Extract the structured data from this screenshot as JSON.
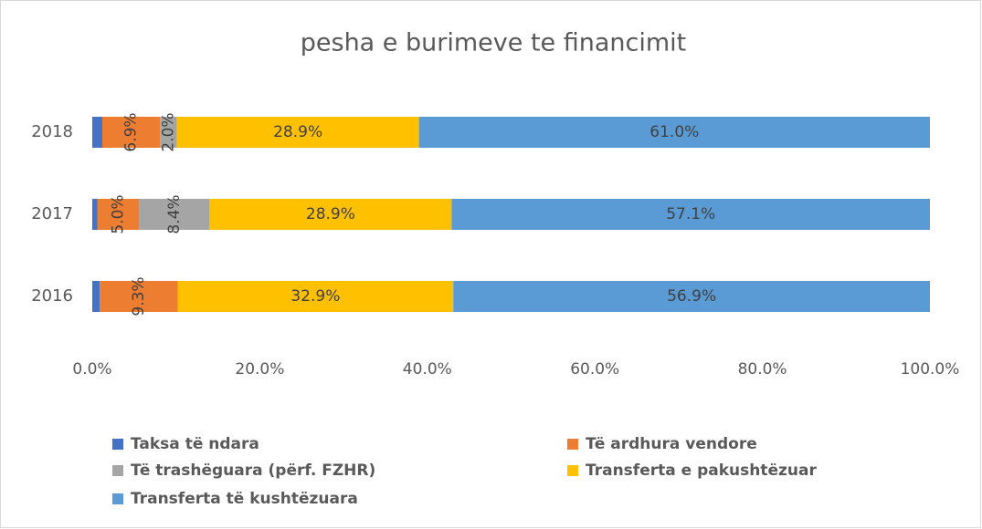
{
  "chart_data": {
    "type": "stacked-bar-horizontal",
    "title": "pesha e burimeve te financimit",
    "categories": [
      "2018",
      "2017",
      "2016"
    ],
    "series": [
      {
        "name": "Taksa të ndara",
        "color": "#4472c4",
        "values": [
          1.2,
          0.6,
          0.9
        ]
      },
      {
        "name": "Të ardhura vendore",
        "color": "#ed7d31",
        "values": [
          6.9,
          5.0,
          9.3
        ],
        "value_labels": [
          "6.9%",
          "5.0%",
          "9.3%"
        ]
      },
      {
        "name": "Të trashëguara (përf. FZHR)",
        "color": "#a5a5a5",
        "values": [
          2.0,
          8.4,
          0
        ],
        "value_labels": [
          "2.0%",
          "8.4%",
          null
        ]
      },
      {
        "name": "Transferta e pakushtëzuar",
        "color": "#ffc000",
        "values": [
          28.9,
          28.9,
          32.9
        ],
        "value_labels": [
          "28.9%",
          "28.9%",
          "32.9%"
        ]
      },
      {
        "name": "Transferta të kushtëzuara",
        "color": "#5b9bd5",
        "values": [
          61.0,
          57.1,
          56.9
        ],
        "value_labels": [
          "61.0%",
          "57.1%",
          "56.9%"
        ]
      }
    ],
    "xlim": [
      0,
      100
    ],
    "xticks": [
      {
        "value": 0,
        "label": "0.0%"
      },
      {
        "value": 20,
        "label": "20.0%"
      },
      {
        "value": 40,
        "label": "40.0%"
      },
      {
        "value": 60,
        "label": "60.0%"
      },
      {
        "value": 80,
        "label": "80.0%"
      },
      {
        "value": 100,
        "label": "100.0%"
      }
    ],
    "legend": "bottom"
  }
}
